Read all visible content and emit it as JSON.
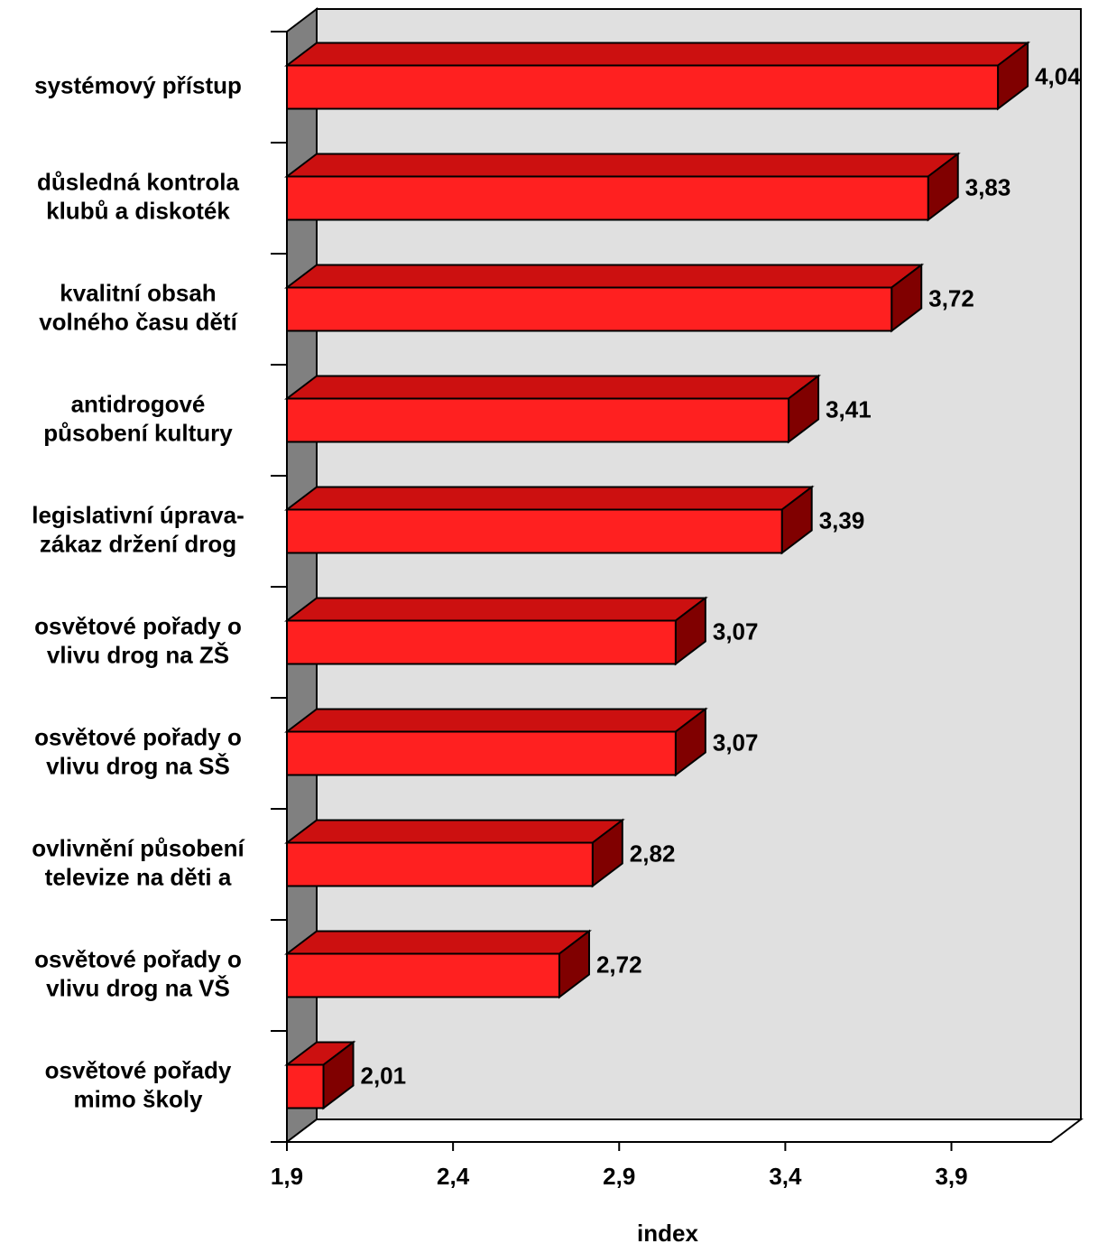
{
  "chart_data": {
    "type": "bar3d_horizontal",
    "categories": [
      [
        "systémový přístup"
      ],
      [
        "důsledná kontrola",
        "klubů a diskoték"
      ],
      [
        "kvalitní obsah",
        "volného času dětí"
      ],
      [
        "antidrogové",
        "působení kultury"
      ],
      [
        "legislativní úprava-",
        "zákaz držení drog"
      ],
      [
        "osvětové pořady o",
        "vlivu drog na ZŠ"
      ],
      [
        "osvětové pořady o",
        "vlivu drog na SŠ"
      ],
      [
        "ovlivnění působení",
        "televize na děti a"
      ],
      [
        "osvětové pořady o",
        "vlivu drog na VŠ"
      ],
      [
        "osvětové pořady",
        "mimo školy"
      ]
    ],
    "values": [
      4.04,
      3.83,
      3.72,
      3.41,
      3.39,
      3.07,
      3.07,
      2.82,
      2.72,
      2.01
    ],
    "value_labels": [
      "4,04",
      "3,83",
      "3,72",
      "3,41",
      "3,39",
      "3,07",
      "3,07",
      "2,82",
      "2,72",
      "2,01"
    ],
    "color": "#ff2020",
    "xlim": [
      1.9,
      4.2
    ],
    "xticks": [
      {
        "value": 1.9,
        "label": "1,9"
      },
      {
        "value": 2.4,
        "label": "2,4"
      },
      {
        "value": 2.9,
        "label": "2,9"
      },
      {
        "value": 3.4,
        "label": "3,4"
      },
      {
        "value": 3.9,
        "label": "3,9"
      }
    ],
    "xlabel": "index"
  }
}
